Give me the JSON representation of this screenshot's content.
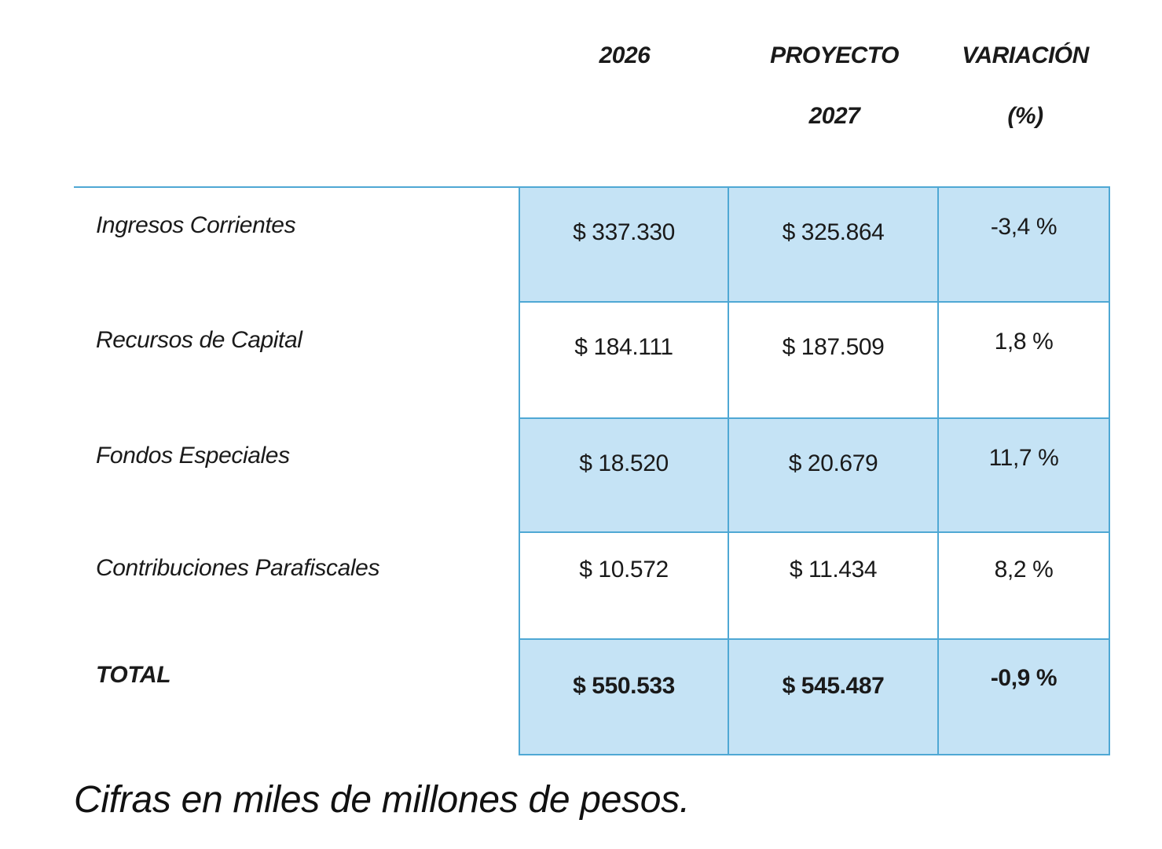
{
  "chart_data": {
    "type": "table",
    "columns": [
      {
        "line1": "2026",
        "line2": ""
      },
      {
        "line1": "PROYECTO",
        "line2": "2027"
      },
      {
        "line1": "VARIACIÓN",
        "line2": "(%)"
      }
    ],
    "rows": [
      {
        "label": "Ingresos Corrientes",
        "v2026": "$ 337.330",
        "v2027": "$ 325.864",
        "variation": "-3,4 %"
      },
      {
        "label": "Recursos de Capital",
        "v2026": "$ 184.111",
        "v2027": "$ 187.509",
        "variation": "1,8 %"
      },
      {
        "label": "Fondos Especiales",
        "v2026": "$ 18.520",
        "v2027": "$ 20.679",
        "variation": "11,7 %"
      },
      {
        "label": "Contribuciones Parafiscales",
        "v2026": "$ 10.572",
        "v2027": "$ 11.434",
        "variation": "8,2 %"
      },
      {
        "label": "TOTAL",
        "v2026": "$ 550.533",
        "v2027": "$ 545.487",
        "variation": "-0,9 %"
      }
    ],
    "values_2026": [
      337330,
      184111,
      18520,
      10572,
      550533
    ],
    "values_2027": [
      325864,
      187509,
      20679,
      11434,
      545487
    ],
    "variation_percent": [
      -3.4,
      1.8,
      11.7,
      8.2,
      -0.9
    ],
    "footnote": "Cifras en miles de millones de pesos."
  },
  "colors": {
    "border": "#4fa8d4",
    "shaded_row": "#c5e3f5",
    "text": "#1a1a1a"
  }
}
